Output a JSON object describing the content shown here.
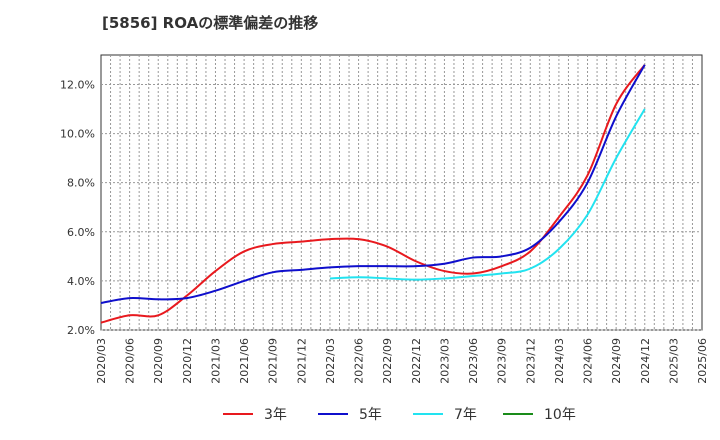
{
  "chart_data": {
    "type": "line",
    "title": "[5856]  ROAの標準偏差の推移",
    "xlabel": "",
    "ylabel": "",
    "x": [
      "2020/03",
      "2020/06",
      "2020/09",
      "2020/12",
      "2021/03",
      "2021/06",
      "2021/09",
      "2021/12",
      "2022/03",
      "2022/06",
      "2022/09",
      "2022/12",
      "2023/03",
      "2023/06",
      "2023/09",
      "2023/12",
      "2024/03",
      "2024/06",
      "2024/09",
      "2024/12",
      "2025/03",
      "2025/06"
    ],
    "x_ticks": [
      "2020/03",
      "2020/06",
      "2020/09",
      "2020/12",
      "2021/03",
      "2021/06",
      "2021/09",
      "2021/12",
      "2022/03",
      "2022/06",
      "2022/09",
      "2022/12",
      "2023/03",
      "2023/06",
      "2023/09",
      "2023/12",
      "2024/03",
      "2024/06",
      "2024/09",
      "2024/12",
      "2025/03",
      "2025/06"
    ],
    "y_ticks": [
      "2.0%",
      "4.0%",
      "6.0%",
      "8.0%",
      "10.0%",
      "12.0%"
    ],
    "ylim": [
      2.0,
      13.2
    ],
    "grid": true,
    "legend_position": "bottom",
    "series": [
      {
        "name": "3年",
        "color": "#e8191e",
        "values": [
          2.3,
          2.6,
          2.6,
          3.4,
          4.4,
          5.2,
          5.5,
          5.6,
          5.7,
          5.7,
          5.4,
          4.8,
          4.4,
          4.3,
          4.6,
          5.2,
          6.6,
          8.3,
          11.2,
          12.8,
          null,
          null
        ]
      },
      {
        "name": "5年",
        "color": "#0f0fcc",
        "values": [
          3.1,
          3.3,
          3.25,
          3.3,
          3.6,
          4.0,
          4.35,
          4.45,
          4.55,
          4.6,
          4.6,
          4.6,
          4.7,
          4.95,
          5.0,
          5.35,
          6.4,
          8.0,
          10.7,
          12.8,
          null,
          null
        ]
      },
      {
        "name": "7年",
        "color": "#22e3f0",
        "values": [
          null,
          null,
          null,
          null,
          null,
          null,
          null,
          null,
          4.1,
          4.15,
          4.1,
          4.05,
          4.1,
          4.2,
          4.3,
          4.5,
          5.3,
          6.7,
          9.0,
          11.0,
          null,
          null
        ]
      },
      {
        "name": "10年",
        "color": "#1a8c1a",
        "values": [
          null,
          null,
          null,
          null,
          null,
          null,
          null,
          null,
          null,
          null,
          null,
          null,
          null,
          null,
          null,
          null,
          null,
          null,
          null,
          null,
          null,
          null
        ]
      }
    ]
  }
}
